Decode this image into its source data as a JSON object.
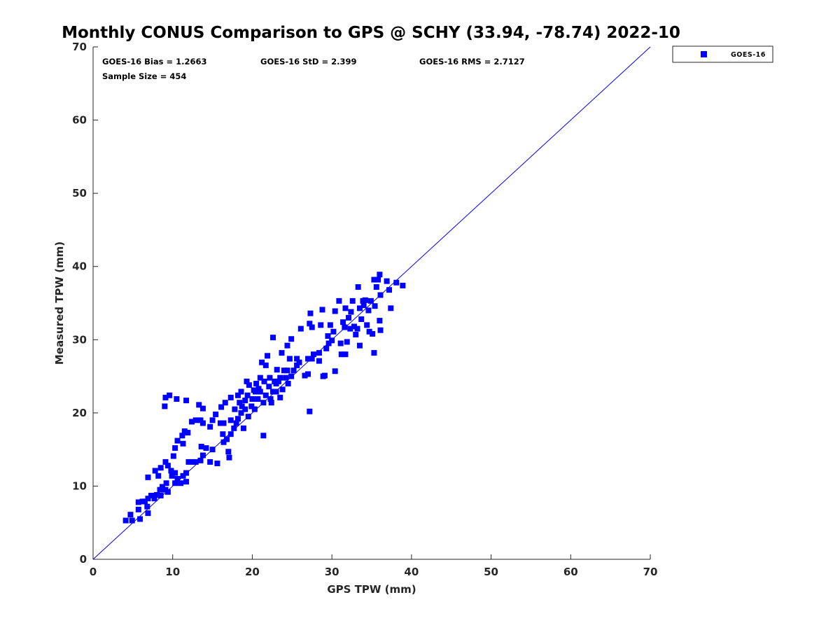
{
  "chart_data": {
    "type": "scatter",
    "title": "Monthly CONUS Comparison to GPS @ SCHY (33.94, -78.74) 2022-10",
    "xlabel": "GPS TPW (mm)",
    "ylabel": "Measured TPW (mm)",
    "xlim": [
      0,
      70
    ],
    "ylim": [
      0,
      70
    ],
    "xticks": [
      "0",
      "10",
      "20",
      "30",
      "40",
      "50",
      "60",
      "70"
    ],
    "yticks": [
      "0",
      "10",
      "20",
      "30",
      "40",
      "50",
      "60",
      "70"
    ],
    "grid": false,
    "legend": {
      "placement": "outside-top-right",
      "entries": [
        "GOES-16"
      ]
    },
    "stats": {
      "bias": "GOES-16 Bias = 1.2663",
      "std": "GOES-16 StD = 2.399",
      "rms": "GOES-16 RMS = 2.7127",
      "sample": "Sample Size = 454"
    },
    "reference_line": {
      "name": "1:1 line",
      "from": [
        0,
        0
      ],
      "to": [
        70,
        70
      ],
      "color": "#0000ff"
    },
    "series": [
      {
        "name": "GOES-16",
        "color": "#0000ff",
        "marker": "square",
        "points": [
          [
            4.1,
            5.3
          ],
          [
            4.9,
            5.3
          ],
          [
            4.7,
            6.1
          ],
          [
            5.9,
            5.5
          ],
          [
            5.7,
            6.8
          ],
          [
            5.7,
            7.8
          ],
          [
            6.2,
            7.9
          ],
          [
            6.5,
            7.9
          ],
          [
            6.9,
            6.3
          ],
          [
            6.8,
            7.2
          ],
          [
            6.9,
            8.3
          ],
          [
            7.3,
            8.7
          ],
          [
            7.7,
            8.3
          ],
          [
            8.0,
            8.8
          ],
          [
            8.4,
            9.5
          ],
          [
            8.5,
            8.7
          ],
          [
            8.7,
            9.9
          ],
          [
            9.1,
            9.5
          ],
          [
            9.2,
            10.4
          ],
          [
            9.4,
            9.2
          ],
          [
            8.2,
            11.4
          ],
          [
            6.9,
            11.2
          ],
          [
            7.8,
            12.1
          ],
          [
            8.5,
            12.5
          ],
          [
            9.1,
            13.3
          ],
          [
            9.4,
            12.8
          ],
          [
            9.8,
            12.1
          ],
          [
            9.9,
            11.4
          ],
          [
            10.3,
            11.8
          ],
          [
            10.3,
            10.4
          ],
          [
            10.6,
            11.0
          ],
          [
            11.0,
            10.4
          ],
          [
            11.3,
            11.4
          ],
          [
            11.7,
            10.6
          ],
          [
            11.7,
            11.8
          ],
          [
            10.1,
            14.1
          ],
          [
            10.3,
            15.2
          ],
          [
            10.6,
            16.2
          ],
          [
            11.2,
            16.9
          ],
          [
            11.5,
            17.5
          ],
          [
            11.9,
            17.3
          ],
          [
            11.3,
            15.8
          ],
          [
            12.0,
            13.3
          ],
          [
            12.5,
            13.3
          ],
          [
            12.9,
            13.3
          ],
          [
            13.5,
            13.5
          ],
          [
            13.8,
            14.2
          ],
          [
            14.2,
            15.2
          ],
          [
            13.6,
            15.4
          ],
          [
            14.7,
            13.3
          ],
          [
            15.0,
            15.0
          ],
          [
            15.6,
            13.1
          ],
          [
            12.4,
            18.8
          ],
          [
            12.9,
            19.0
          ],
          [
            13.5,
            19.0
          ],
          [
            13.8,
            18.6
          ],
          [
            13.3,
            21.1
          ],
          [
            13.8,
            20.6
          ],
          [
            15.0,
            19.0
          ],
          [
            14.7,
            18.1
          ],
          [
            15.4,
            19.8
          ],
          [
            9.1,
            22.1
          ],
          [
            9.6,
            22.4
          ],
          [
            9.0,
            20.9
          ],
          [
            10.5,
            21.9
          ],
          [
            11.7,
            21.7
          ],
          [
            16.0,
            18.6
          ],
          [
            16.3,
            17.1
          ],
          [
            16.4,
            16.0
          ],
          [
            16.8,
            16.4
          ],
          [
            17.0,
            14.7
          ],
          [
            17.1,
            13.9
          ],
          [
            17.3,
            17.1
          ],
          [
            17.7,
            17.9
          ],
          [
            18.0,
            18.6
          ],
          [
            18.2,
            19.2
          ],
          [
            18.6,
            20.0
          ],
          [
            18.7,
            20.9
          ],
          [
            19.1,
            21.7
          ],
          [
            18.9,
            17.9
          ],
          [
            16.6,
            21.4
          ],
          [
            16.1,
            20.8
          ],
          [
            17.3,
            22.1
          ],
          [
            18.2,
            22.4
          ],
          [
            19.4,
            22.4
          ],
          [
            19.6,
            23.8
          ],
          [
            20.2,
            23.1
          ],
          [
            20.5,
            24.0
          ],
          [
            19.9,
            20.9
          ],
          [
            20.3,
            20.5
          ],
          [
            20.7,
            21.9
          ],
          [
            21.0,
            22.9
          ],
          [
            21.4,
            21.4
          ],
          [
            21.4,
            16.9
          ],
          [
            21.7,
            22.4
          ],
          [
            22.1,
            23.6
          ],
          [
            22.3,
            21.9
          ],
          [
            22.6,
            22.9
          ],
          [
            23.0,
            24.0
          ],
          [
            23.3,
            24.3
          ],
          [
            23.5,
            22.1
          ],
          [
            23.8,
            23.2
          ],
          [
            24.2,
            24.8
          ],
          [
            24.4,
            25.8
          ],
          [
            24.5,
            24.0
          ],
          [
            24.9,
            25.0
          ],
          [
            25.2,
            25.8
          ],
          [
            25.6,
            26.5
          ],
          [
            25.9,
            26.9
          ],
          [
            21.7,
            26.5
          ],
          [
            21.9,
            27.8
          ],
          [
            21.2,
            26.9
          ],
          [
            22.6,
            30.3
          ],
          [
            23.7,
            28.2
          ],
          [
            24.4,
            29.2
          ],
          [
            24.9,
            30.1
          ],
          [
            24.0,
            25.8
          ],
          [
            24.7,
            27.4
          ],
          [
            25.6,
            27.4
          ],
          [
            26.6,
            25.1
          ],
          [
            27.0,
            25.3
          ],
          [
            27.0,
            27.4
          ],
          [
            27.2,
            20.2
          ],
          [
            27.5,
            27.4
          ],
          [
            27.7,
            28.0
          ],
          [
            26.1,
            31.5
          ],
          [
            27.2,
            32.2
          ],
          [
            27.5,
            31.7
          ],
          [
            27.3,
            33.6
          ],
          [
            28.4,
            27.1
          ],
          [
            28.4,
            28.2
          ],
          [
            28.6,
            32.0
          ],
          [
            28.8,
            34.1
          ],
          [
            28.9,
            25.0
          ],
          [
            29.1,
            25.1
          ],
          [
            29.3,
            28.8
          ],
          [
            29.5,
            30.5
          ],
          [
            29.6,
            29.5
          ],
          [
            29.8,
            32.0
          ],
          [
            30.0,
            29.9
          ],
          [
            30.2,
            31.1
          ],
          [
            30.4,
            25.7
          ],
          [
            30.4,
            33.9
          ],
          [
            30.9,
            35.3
          ],
          [
            31.1,
            29.5
          ],
          [
            31.2,
            28.0
          ],
          [
            31.4,
            32.4
          ],
          [
            31.6,
            31.7
          ],
          [
            31.7,
            34.3
          ],
          [
            31.7,
            28.0
          ],
          [
            31.9,
            29.7
          ],
          [
            32.1,
            33.0
          ],
          [
            32.3,
            31.5
          ],
          [
            32.4,
            33.8
          ],
          [
            32.6,
            35.3
          ],
          [
            32.8,
            31.8
          ],
          [
            33.0,
            30.7
          ],
          [
            33.2,
            31.5
          ],
          [
            33.3,
            37.2
          ],
          [
            33.5,
            29.2
          ],
          [
            33.5,
            34.3
          ],
          [
            33.7,
            32.8
          ],
          [
            33.9,
            35.3
          ],
          [
            34.0,
            34.7
          ],
          [
            34.2,
            35.4
          ],
          [
            34.4,
            32.0
          ],
          [
            34.6,
            34.0
          ],
          [
            34.7,
            31.1
          ],
          [
            34.9,
            35.3
          ],
          [
            35.1,
            30.8
          ],
          [
            35.3,
            28.2
          ],
          [
            35.3,
            38.2
          ],
          [
            35.4,
            34.6
          ],
          [
            35.6,
            37.2
          ],
          [
            35.8,
            38.2
          ],
          [
            36.0,
            38.9
          ],
          [
            36.0,
            32.6
          ],
          [
            36.1,
            36.1
          ],
          [
            36.1,
            31.3
          ],
          [
            36.9,
            38.0
          ],
          [
            37.2,
            36.8
          ],
          [
            37.4,
            34.3
          ],
          [
            38.1,
            37.8
          ],
          [
            38.9,
            37.4
          ],
          [
            18.6,
            22.9
          ],
          [
            19.1,
            20.5
          ],
          [
            19.5,
            19.5
          ],
          [
            20.0,
            21.9
          ],
          [
            20.8,
            23.3
          ],
          [
            21.5,
            24.3
          ],
          [
            22.2,
            24.8
          ],
          [
            23.0,
            22.9
          ],
          [
            22.4,
            21.4
          ],
          [
            22.8,
            24.3
          ],
          [
            23.1,
            25.9
          ],
          [
            23.5,
            24.8
          ],
          [
            17.8,
            20.5
          ],
          [
            17.3,
            19.0
          ],
          [
            16.4,
            18.6
          ],
          [
            18.4,
            21.4
          ],
          [
            20.4,
            22.9
          ],
          [
            21.0,
            24.8
          ],
          [
            19.3,
            24.3
          ]
        ]
      }
    ]
  }
}
